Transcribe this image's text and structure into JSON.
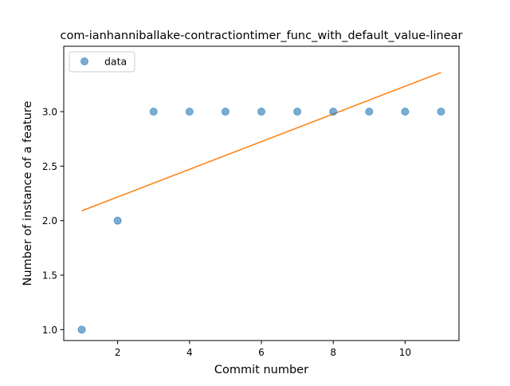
{
  "chart_data": {
    "type": "scatter",
    "title": "com-ianhanniballake-contractiontimer_func_with_default_value-linear",
    "xlabel": "Commit number",
    "ylabel": "Number of instance of a feature",
    "xlim": [
      0.5,
      11.5
    ],
    "ylim": [
      0.9,
      3.6
    ],
    "xticks": [
      2,
      4,
      6,
      8,
      10
    ],
    "xtick_labels": [
      "2",
      "4",
      "6",
      "8",
      "10"
    ],
    "yticks": [
      1.0,
      1.5,
      2.0,
      2.5,
      3.0
    ],
    "ytick_labels": [
      "1.0",
      "1.5",
      "2.0",
      "2.5",
      "3.0"
    ],
    "grid": false,
    "legend_position": "upper-left",
    "series": [
      {
        "name": "data",
        "kind": "scatter",
        "color": "#1f77b4",
        "x": [
          1,
          2,
          3,
          4,
          5,
          6,
          7,
          8,
          9,
          10,
          11
        ],
        "y": [
          1,
          2,
          3,
          3,
          3,
          3,
          3,
          3,
          3,
          3,
          3
        ]
      },
      {
        "kind": "line",
        "color": "#ff7f0e",
        "x": [
          1,
          11
        ],
        "y": [
          2.09,
          3.36
        ]
      }
    ]
  }
}
